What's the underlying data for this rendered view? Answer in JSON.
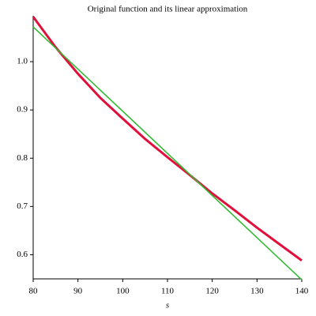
{
  "chart_data": {
    "type": "line",
    "title": "Original function and its linear approximation",
    "xlabel": "s",
    "xlim": [
      80,
      140
    ],
    "ylim": [
      0.55,
      1.095
    ],
    "xticks": [
      80,
      90,
      100,
      110,
      120,
      130,
      140
    ],
    "yticks": [
      0.6,
      0.7,
      0.8,
      0.9,
      {
        "value": 1,
        "label": "1.0"
      }
    ],
    "series": [
      {
        "color": "#e0103c",
        "x": [
          80,
          85,
          90,
          95,
          100,
          105,
          110,
          115,
          120,
          125,
          130,
          135,
          140
        ],
        "values": [
          1.093,
          1.03,
          0.975,
          0.925,
          0.882,
          0.84,
          0.802,
          0.765,
          0.727,
          0.692,
          0.656,
          0.622,
          0.588
        ]
      },
      {
        "color": "#33bb33",
        "x": [
          80,
          140
        ],
        "values": [
          1.072,
          0.548
        ]
      }
    ]
  }
}
